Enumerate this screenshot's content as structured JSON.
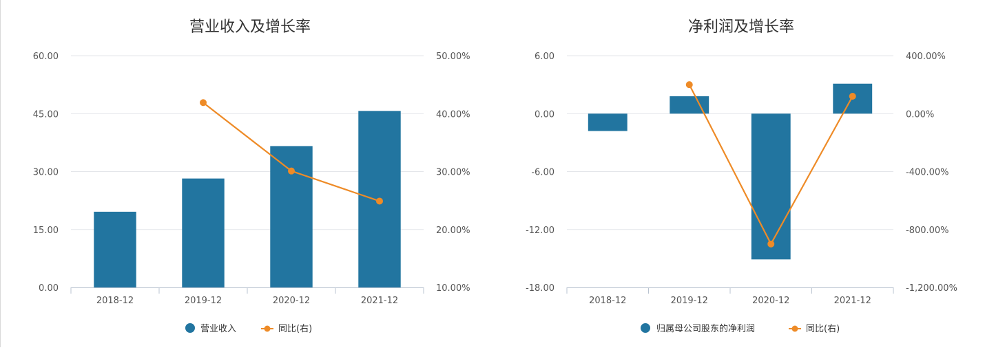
{
  "colors": {
    "bar": "#2275a0",
    "line": "#ee8b27",
    "grid": "#e3e6ea",
    "axis": "#b9c3d0"
  },
  "chart_data": [
    {
      "type": "bar",
      "title": "营业收入及增长率",
      "categories": [
        "2018-12",
        "2019-12",
        "2020-12",
        "2021-12"
      ],
      "series": [
        {
          "name": "营业收入",
          "type": "bar",
          "axis": "left",
          "values": [
            19.6,
            28.2,
            36.6,
            45.7
          ]
        },
        {
          "name": "同比(右)",
          "type": "line",
          "axis": "right",
          "values": [
            null,
            41.9,
            30.1,
            24.9
          ]
        }
      ],
      "ylim": [
        0,
        60
      ],
      "yticks": [
        "0.00",
        "15.00",
        "30.00",
        "45.00",
        "60.00"
      ],
      "y2lim": [
        10,
        50
      ],
      "y2ticks": [
        "10.00%",
        "20.00%",
        "30.00%",
        "40.00%",
        "50.00%"
      ],
      "grid": true,
      "legend": "bottom"
    },
    {
      "type": "bar",
      "title": "净利润及增长率",
      "categories": [
        "2018-12",
        "2019-12",
        "2020-12",
        "2021-12"
      ],
      "series": [
        {
          "name": "归属母公司股东的净利润",
          "type": "bar",
          "axis": "left",
          "values": [
            -1.8,
            1.8,
            -15.1,
            3.1
          ]
        },
        {
          "name": "同比(右)",
          "type": "line",
          "axis": "right",
          "values": [
            null,
            200,
            -900,
            120
          ]
        }
      ],
      "ylim": [
        -18,
        6
      ],
      "yticks": [
        "-18.00",
        "-12.00",
        "-6.00",
        "0.00",
        "6.00"
      ],
      "y2lim": [
        -1200,
        400
      ],
      "y2ticks": [
        "-1,200.00%",
        "-800.00%",
        "-400.00%",
        "0.00%",
        "400.00%"
      ],
      "grid": true,
      "legend": "bottom"
    }
  ]
}
